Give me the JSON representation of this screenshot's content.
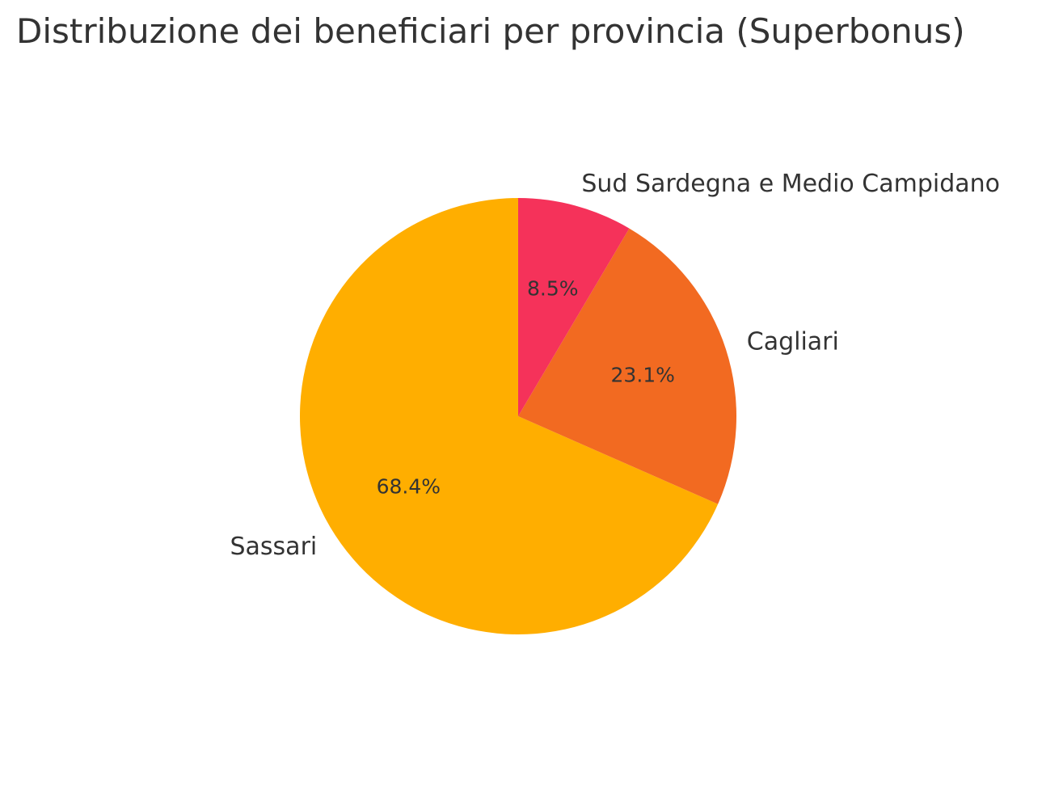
{
  "chart_data": {
    "type": "pie",
    "title": "Distribuzione dei beneficiari per provincia (Superbonus)",
    "labels": [
      "Sassari",
      "Cagliari",
      "Sud Sardegna e Medio Campidano"
    ],
    "values": [
      68.4,
      23.1,
      8.5
    ],
    "pct_labels": [
      "68.4%",
      "23.1%",
      "8.5%"
    ],
    "colors": [
      "#FFAE00",
      "#F26A21",
      "#F5325A"
    ],
    "start_angle_deg": 90,
    "direction": "counterclockwise",
    "legend": "none"
  }
}
